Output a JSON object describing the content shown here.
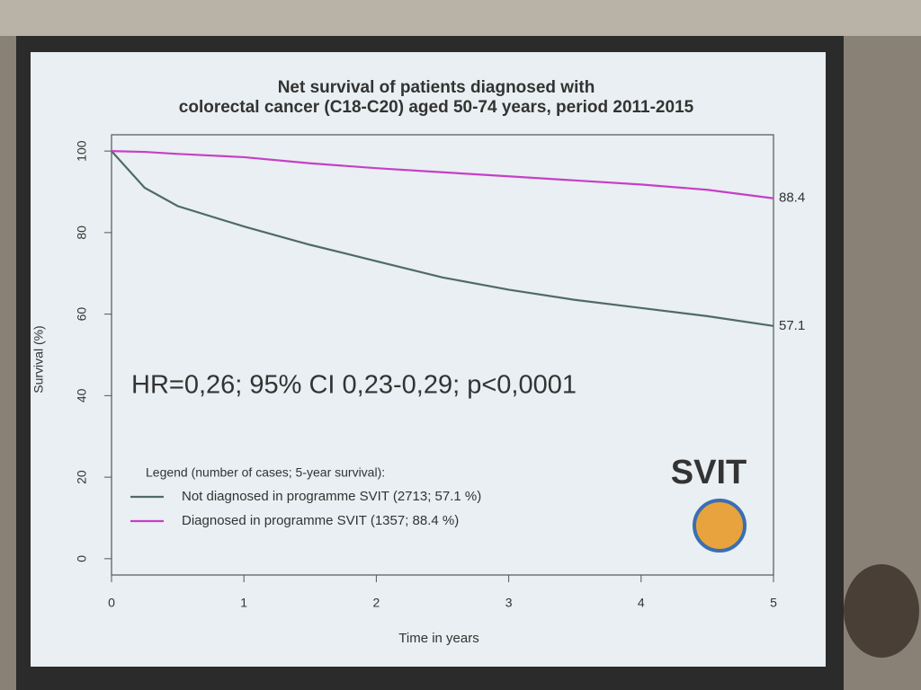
{
  "chart_data": {
    "type": "line",
    "title": [
      "Net survival of patients diagnosed with",
      "colorectal cancer (C18-C20) aged 50-74 years, period 2011-2015"
    ],
    "x_label": "Time in years",
    "y_label": "Survival (%)",
    "annotation": "HR=0,26; 95% CI 0,23-0,29; p<0,0001",
    "legend_title": "Legend (number of cases; 5-year survival):",
    "logo": "SVIT",
    "x": [
      0,
      0.25,
      0.5,
      1,
      1.5,
      2,
      2.5,
      3,
      3.5,
      4,
      4.5,
      5
    ],
    "series": [
      {
        "name": "Not diagnosed in programme SVIT (2713; 57.1 %)",
        "color": "#4f6b63",
        "values": [
          100,
          91,
          86.5,
          81.5,
          77,
          73,
          69,
          66,
          63.5,
          61.5,
          59.5,
          57.1
        ]
      },
      {
        "name": "Diagnosed in programme SVIT (1357; 88.4 %)",
        "color": "#c63fc8",
        "values": [
          100,
          99.8,
          99.3,
          98.5,
          97,
          95.8,
          94.8,
          93.8,
          92.8,
          91.8,
          90.5,
          88.4
        ]
      }
    ],
    "xlim": [
      0,
      5
    ],
    "xticks": [
      0,
      1,
      2,
      3,
      4,
      5
    ],
    "ylim": [
      -4,
      104
    ],
    "yticks": [
      0,
      20,
      40,
      60,
      80,
      100
    ]
  }
}
